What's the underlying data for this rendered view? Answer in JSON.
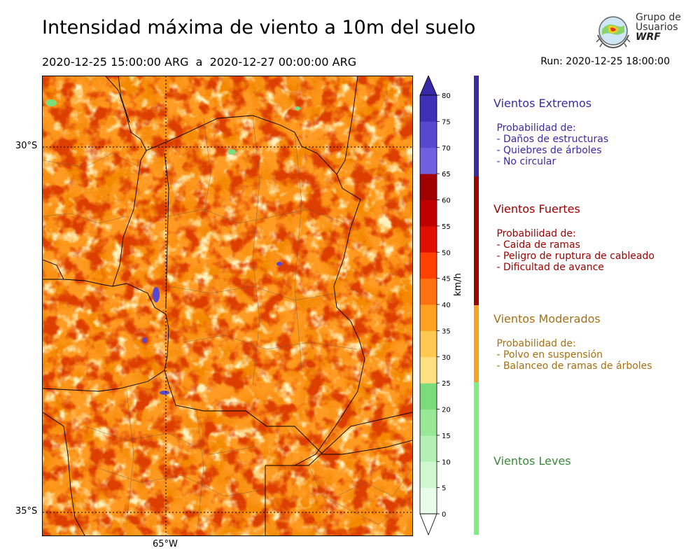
{
  "header": {
    "title": "Intensidad máxima de viento a 10m del suelo",
    "period": "2020-12-25 15:00:00 ARG  a  2020-12-27 00:00:00 ARG",
    "run": "Run: 2020-12-25 18:00:00"
  },
  "logo": {
    "line1": "Grupo de",
    "line2": "Usuarios",
    "line3": "WRF"
  },
  "map": {
    "lat_labels": [
      "30°S",
      "35°S"
    ],
    "lon_labels": [
      "65°W"
    ]
  },
  "colorbar": {
    "unit": "km/h",
    "ticks": [
      "0",
      "5",
      "10",
      "15",
      "20",
      "25",
      "30",
      "35",
      "40",
      "45",
      "50",
      "55",
      "60",
      "65",
      "70",
      "75",
      "80"
    ],
    "colors": [
      "#e8fde8",
      "#d0f8d0",
      "#b4f0b4",
      "#98e898",
      "#7cdc7c",
      "#ffe080",
      "#ffc850",
      "#ffa020",
      "#ff7010",
      "#ff4000",
      "#e01000",
      "#c00000",
      "#a00000",
      "#7060e0",
      "#5848d0",
      "#4030b8"
    ],
    "extend_min": "#ffffff",
    "extend_max": "#3828a8"
  },
  "categories": [
    {
      "title": "Vientos Extremos",
      "color": "#3a2aa8",
      "bar_color": "#3a2aa8",
      "desc": " Probabilidad de:\n - Daños de estructuras\n - Quiebres de árboles\n - No circular"
    },
    {
      "title": "Vientos Fuertes",
      "color": "#a00000",
      "bar_color": "#a00000",
      "desc": " Probabilidad de:\n - Caida de ramas\n - Peligro de ruptura de cableado\n - Dificultad de avance"
    },
    {
      "title": "Vientos Moderados",
      "color": "#a87010",
      "bar_color": "#ffa020",
      "desc": " Probabilidad de:\n - Polvo en suspensión\n - Balanceo de ramas de árboles"
    },
    {
      "title": "Vientos Leves",
      "color": "#3a8a3a",
      "bar_color": "#7cf07c",
      "desc": ""
    }
  ]
}
